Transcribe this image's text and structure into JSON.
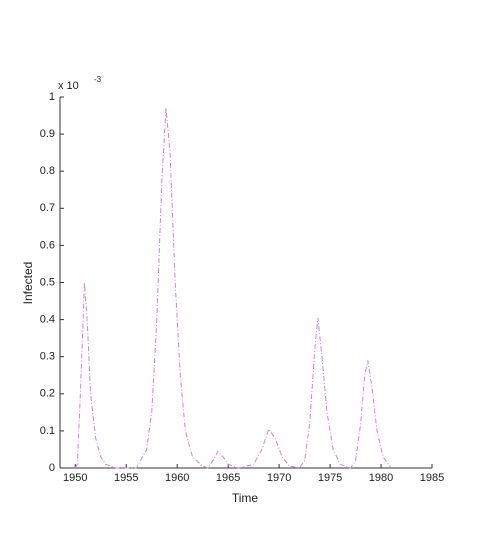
{
  "chart_data": {
    "type": "line",
    "xlabel": "Time",
    "ylabel": "Infected",
    "axis_multiplier": "x 10",
    "axis_exponent": "-3",
    "x": [
      1950,
      1950.2,
      1950.5,
      1950.9,
      1951.2,
      1951.5,
      1952,
      1952.5,
      1953,
      1954,
      1956,
      1957,
      1957.5,
      1958,
      1958.5,
      1958.9,
      1959.3,
      1959.8,
      1960.3,
      1960.8,
      1961.5,
      1962.5,
      1963,
      1963.5,
      1964,
      1964.5,
      1965,
      1966,
      1967.5,
      1968.3,
      1969,
      1969.6,
      1970.3,
      1971,
      1972,
      1972.5,
      1973,
      1973.5,
      1973.8,
      1974.2,
      1974.7,
      1975.3,
      1976,
      1977,
      1977.5,
      1978,
      1978.4,
      1978.7,
      1979.1,
      1979.6,
      1980.2,
      1981
    ],
    "series": [
      {
        "color": "#cc88cc",
        "values": [
          0,
          0.01,
          0.2,
          0.5,
          0.38,
          0.2,
          0.08,
          0.03,
          0.01,
          0,
          0,
          0.05,
          0.15,
          0.4,
          0.78,
          0.97,
          0.85,
          0.5,
          0.25,
          0.1,
          0.03,
          0.005,
          0,
          0.02,
          0.045,
          0.03,
          0.01,
          0,
          0.01,
          0.05,
          0.105,
          0.08,
          0.03,
          0.005,
          0,
          0.02,
          0.12,
          0.32,
          0.405,
          0.3,
          0.15,
          0.05,
          0.01,
          0,
          0.02,
          0.12,
          0.25,
          0.29,
          0.22,
          0.1,
          0.03,
          0
        ]
      }
    ],
    "xlim": [
      1948.5,
      1985
    ],
    "xticks": [
      1950,
      1955,
      1960,
      1965,
      1970,
      1975,
      1980,
      1985
    ],
    "ylim": [
      0,
      1
    ],
    "yticks": [
      0,
      0.1,
      0.2,
      0.3,
      0.4,
      0.5,
      0.6,
      0.7,
      0.8,
      0.9,
      1
    ],
    "grid": false
  }
}
